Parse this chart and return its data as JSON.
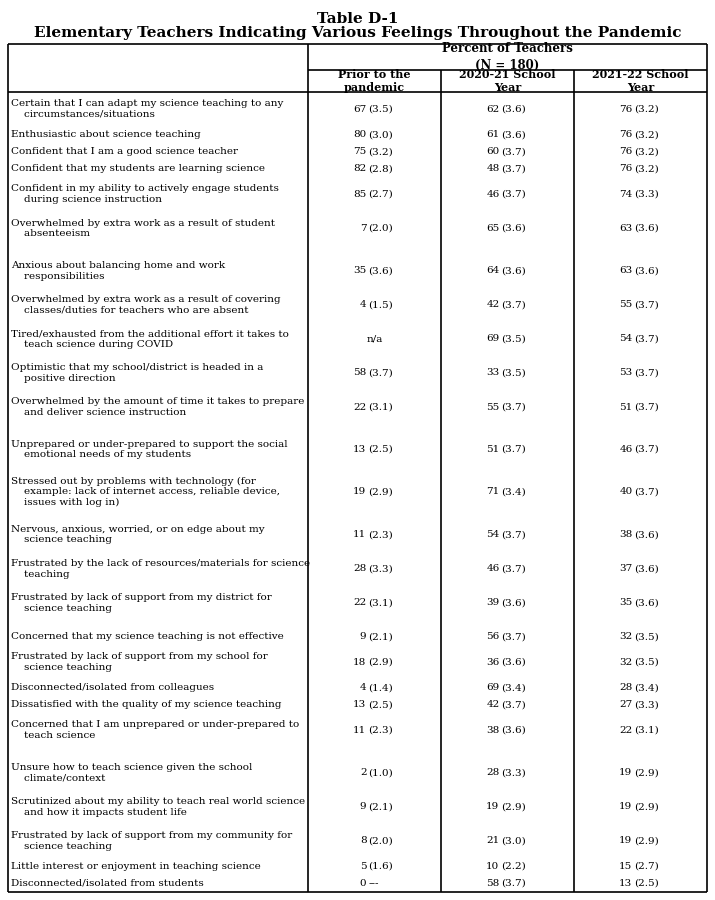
{
  "title_line1": "Table D-1",
  "title_line2": "Elementary Teachers Indicating Various Feelings Throughout the Pandemic",
  "col_headers": [
    "Prior to the\npandemic",
    "2020-21 School\nYear",
    "2021-22 School\nYear"
  ],
  "rows": [
    {
      "label": "Certain that I can adapt my science teaching to any\n    circumstances/situations",
      "vals": [
        "67",
        "(3.5)",
        "62",
        "(3.6)",
        "76",
        "(3.2)"
      ],
      "spacer": false
    },
    {
      "label": "Enthusiastic about science teaching",
      "vals": [
        "80",
        "(3.0)",
        "61",
        "(3.6)",
        "76",
        "(3.2)"
      ],
      "spacer": false
    },
    {
      "label": "Confident that I am a good science teacher",
      "vals": [
        "75",
        "(3.2)",
        "60",
        "(3.7)",
        "76",
        "(3.2)"
      ],
      "spacer": false
    },
    {
      "label": "Confident that my students are learning science",
      "vals": [
        "82",
        "(2.8)",
        "48",
        "(3.7)",
        "76",
        "(3.2)"
      ],
      "spacer": false
    },
    {
      "label": "Confident in my ability to actively engage students\n    during science instruction",
      "vals": [
        "85",
        "(2.7)",
        "46",
        "(3.7)",
        "74",
        "(3.3)"
      ],
      "spacer": false
    },
    {
      "label": "Overwhelmed by extra work as a result of student\n    absenteeism",
      "vals": [
        "7",
        "(2.0)",
        "65",
        "(3.6)",
        "63",
        "(3.6)"
      ],
      "spacer": false
    },
    {
      "label": "",
      "vals": [
        "",
        "",
        "",
        "",
        "",
        ""
      ],
      "spacer": true
    },
    {
      "label": "Anxious about balancing home and work\n    responsibilities",
      "vals": [
        "35",
        "(3.6)",
        "64",
        "(3.6)",
        "63",
        "(3.6)"
      ],
      "spacer": false
    },
    {
      "label": "Overwhelmed by extra work as a result of covering\n    classes/duties for teachers who are absent",
      "vals": [
        "4",
        "(1.5)",
        "42",
        "(3.7)",
        "55",
        "(3.7)"
      ],
      "spacer": false
    },
    {
      "label": "Tired/exhausted from the additional effort it takes to\n    teach science during COVID",
      "vals": [
        "n/a",
        "",
        "69",
        "(3.5)",
        "54",
        "(3.7)"
      ],
      "spacer": false
    },
    {
      "label": "Optimistic that my school/district is headed in a\n    positive direction",
      "vals": [
        "58",
        "(3.7)",
        "33",
        "(3.5)",
        "53",
        "(3.7)"
      ],
      "spacer": false
    },
    {
      "label": "Overwhelmed by the amount of time it takes to prepare\n    and deliver science instruction",
      "vals": [
        "22",
        "(3.1)",
        "55",
        "(3.7)",
        "51",
        "(3.7)"
      ],
      "spacer": false
    },
    {
      "label": "",
      "vals": [
        "",
        "",
        "",
        "",
        "",
        ""
      ],
      "spacer": true
    },
    {
      "label": "Unprepared or under-prepared to support the social\n    emotional needs of my students",
      "vals": [
        "13",
        "(2.5)",
        "51",
        "(3.7)",
        "46",
        "(3.7)"
      ],
      "spacer": false
    },
    {
      "label": "Stressed out by problems with technology (for\n    example: lack of internet access, reliable device,\n    issues with log in)",
      "vals": [
        "19",
        "(2.9)",
        "71",
        "(3.4)",
        "40",
        "(3.7)"
      ],
      "spacer": false
    },
    {
      "label": "Nervous, anxious, worried, or on edge about my\n    science teaching",
      "vals": [
        "11",
        "(2.3)",
        "54",
        "(3.7)",
        "38",
        "(3.6)"
      ],
      "spacer": false
    },
    {
      "label": "Frustrated by the lack of resources/materials for science\n    teaching",
      "vals": [
        "28",
        "(3.3)",
        "46",
        "(3.7)",
        "37",
        "(3.6)"
      ],
      "spacer": false
    },
    {
      "label": "Frustrated by lack of support from my district for\n    science teaching",
      "vals": [
        "22",
        "(3.1)",
        "39",
        "(3.6)",
        "35",
        "(3.6)"
      ],
      "spacer": false
    },
    {
      "label": "",
      "vals": [
        "",
        "",
        "",
        "",
        "",
        ""
      ],
      "spacer": true
    },
    {
      "label": "Concerned that my science teaching is not effective",
      "vals": [
        "9",
        "(2.1)",
        "56",
        "(3.7)",
        "32",
        "(3.5)"
      ],
      "spacer": false
    },
    {
      "label": "Frustrated by lack of support from my school for\n    science teaching",
      "vals": [
        "18",
        "(2.9)",
        "36",
        "(3.6)",
        "32",
        "(3.5)"
      ],
      "spacer": false
    },
    {
      "label": "Disconnected/isolated from colleagues",
      "vals": [
        "4",
        "(1.4)",
        "69",
        "(3.4)",
        "28",
        "(3.4)"
      ],
      "spacer": false
    },
    {
      "label": "Dissatisfied with the quality of my science teaching",
      "vals": [
        "13",
        "(2.5)",
        "42",
        "(3.7)",
        "27",
        "(3.3)"
      ],
      "spacer": false
    },
    {
      "label": "Concerned that I am unprepared or under-prepared to\n    teach science",
      "vals": [
        "11",
        "(2.3)",
        "38",
        "(3.6)",
        "22",
        "(3.1)"
      ],
      "spacer": false
    },
    {
      "label": "",
      "vals": [
        "",
        "",
        "",
        "",
        "",
        ""
      ],
      "spacer": true
    },
    {
      "label": "Unsure how to teach science given the school\n    climate/context",
      "vals": [
        "2",
        "(1.0)",
        "28",
        "(3.3)",
        "19",
        "(2.9)"
      ],
      "spacer": false
    },
    {
      "label": "Scrutinized about my ability to teach real world science\n    and how it impacts student life",
      "vals": [
        "9",
        "(2.1)",
        "19",
        "(2.9)",
        "19",
        "(2.9)"
      ],
      "spacer": false
    },
    {
      "label": "Frustrated by lack of support from my community for\n    science teaching",
      "vals": [
        "8",
        "(2.0)",
        "21",
        "(3.0)",
        "19",
        "(2.9)"
      ],
      "spacer": false
    },
    {
      "label": "Little interest or enjoyment in teaching science",
      "vals": [
        "5",
        "(1.6)",
        "10",
        "(2.2)",
        "15",
        "(2.7)"
      ],
      "spacer": false
    },
    {
      "label": "Disconnected/isolated from students",
      "vals": [
        "0",
        "---",
        "58",
        "(3.7)",
        "13",
        "(2.5)"
      ],
      "spacer": false
    }
  ],
  "bg_color": "#ffffff",
  "text_color": "#000000",
  "border_color": "#000000",
  "font_size": 7.5,
  "header_font_size": 8.5,
  "title_font_size_1": 11,
  "title_font_size_2": 11
}
